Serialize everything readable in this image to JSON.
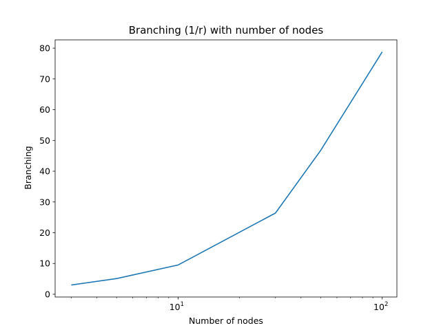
{
  "chart_data": {
    "type": "line",
    "title": "Branching (1/r) with number of nodes",
    "xlabel": "Number of nodes",
    "ylabel": "Branching",
    "x_scale": "log",
    "xlim": [
      2.5,
      118
    ],
    "ylim": [
      -0.9,
      82.7
    ],
    "x_ticks": [
      {
        "value": 10,
        "base": "10",
        "exp": "1"
      },
      {
        "value": 100,
        "base": "10",
        "exp": "2"
      }
    ],
    "x_minor_ticks": [
      3,
      4,
      5,
      6,
      7,
      8,
      9,
      20,
      30,
      40,
      50,
      60,
      70,
      80,
      90
    ],
    "y_ticks": [
      0,
      10,
      20,
      30,
      40,
      50,
      60,
      70,
      80
    ],
    "grid": false,
    "line_color": "#1f77b4",
    "series": [
      {
        "x": [
          3,
          5,
          10,
          30,
          50,
          100
        ],
        "values": [
          3.0,
          5.1,
          9.5,
          26.4,
          46.8,
          78.8
        ]
      }
    ]
  }
}
